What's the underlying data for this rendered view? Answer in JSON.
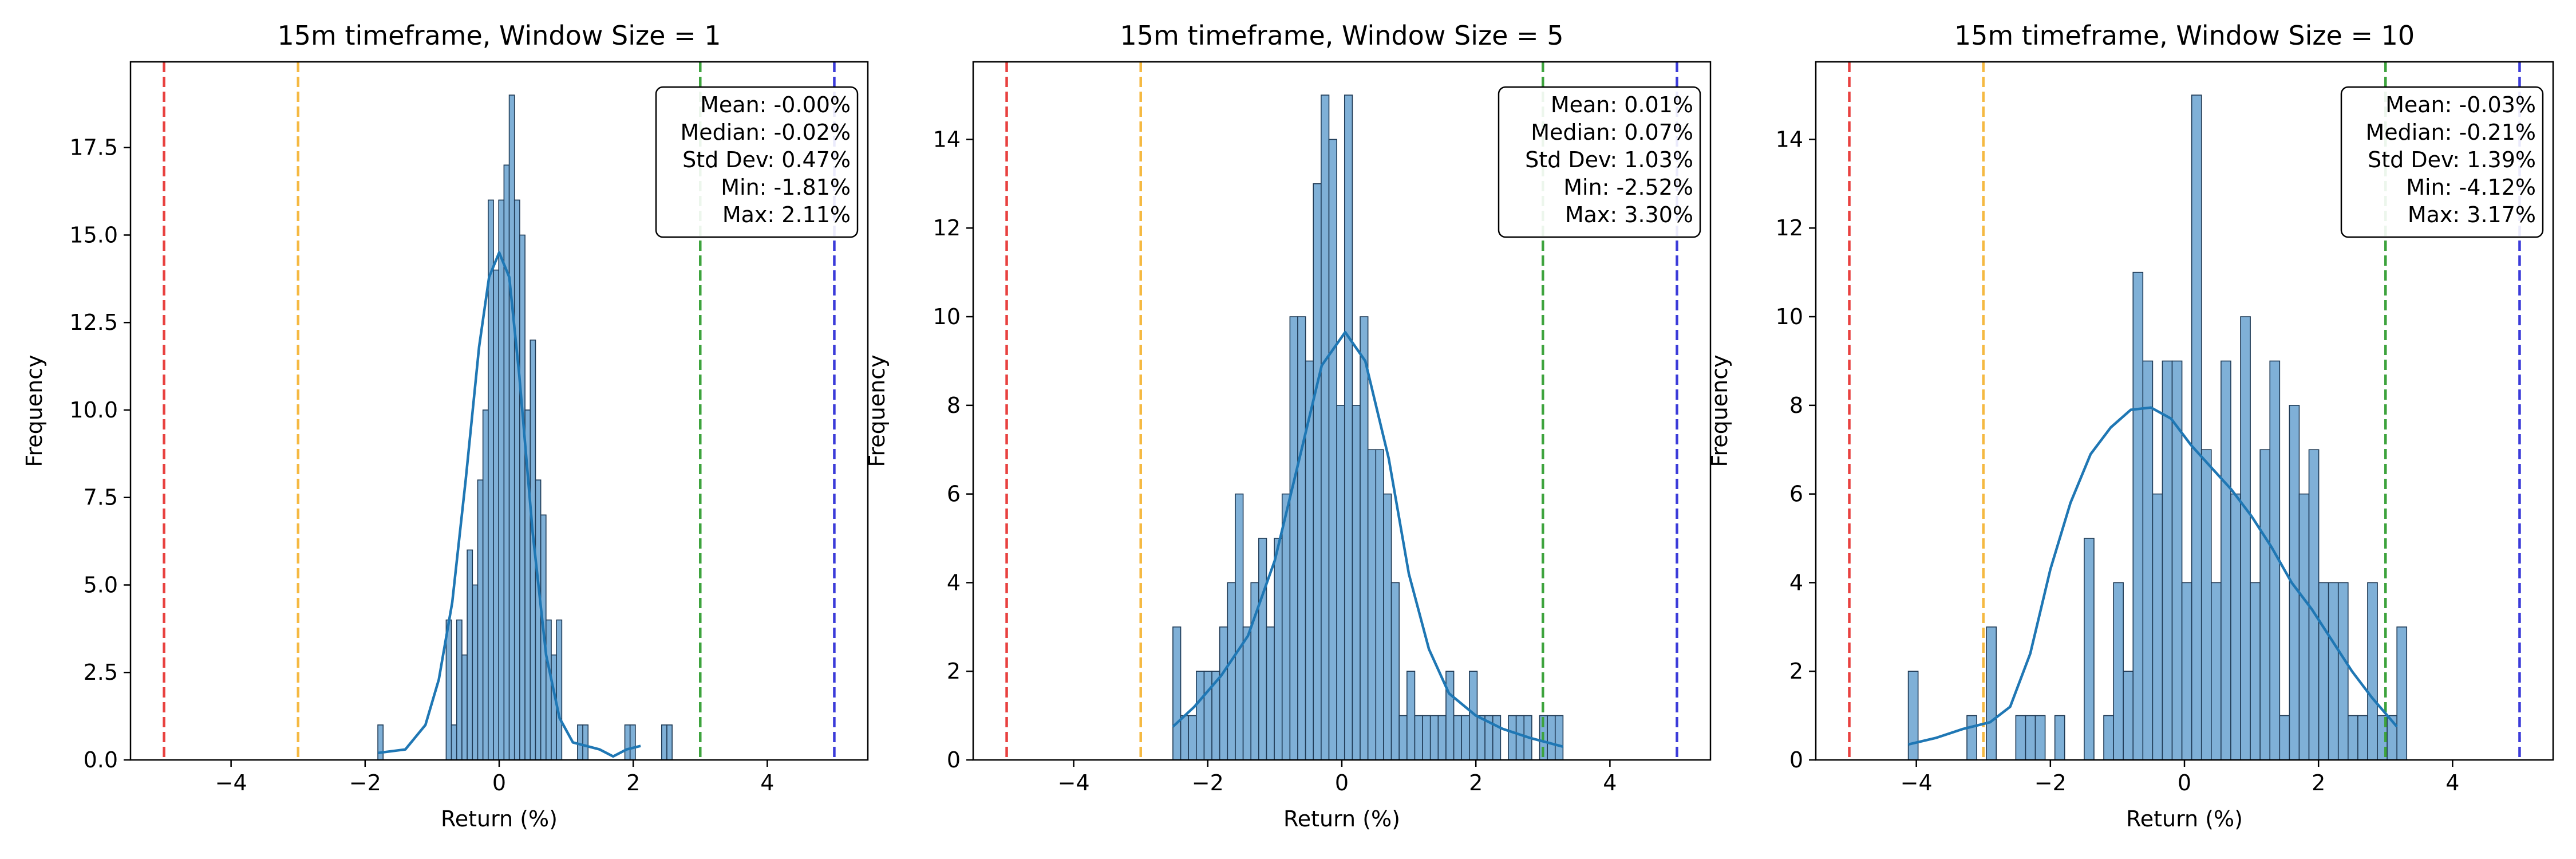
{
  "chart_data": [
    {
      "type": "histogram",
      "title": "15m timeframe, Window Size = 1",
      "xlabel": "Return (%)",
      "ylabel": "Frequency",
      "xlim": [
        -5.5,
        5.5
      ],
      "ylim": [
        0,
        19.95
      ],
      "xticks": [
        -4,
        -2,
        0,
        2,
        4
      ],
      "yticks": [
        0.0,
        2.5,
        5.0,
        7.5,
        10.0,
        12.5,
        15.0,
        17.5
      ],
      "bin_start": -1.81,
      "bin_width": 0.0784,
      "counts": [
        1,
        0,
        0,
        0,
        0,
        0,
        0,
        0,
        0,
        0,
        0,
        0,
        0,
        4,
        1,
        4,
        3,
        6,
        5,
        8,
        10,
        16,
        14,
        16,
        17,
        19,
        16,
        15,
        10,
        12,
        8,
        7,
        4,
        3,
        4,
        0,
        0,
        0,
        1,
        1,
        0,
        0,
        0,
        0,
        0,
        0,
        0,
        1,
        1,
        0,
        0,
        0,
        0,
        0,
        1,
        1
      ],
      "kde": [
        [
          -1.81,
          0.2
        ],
        [
          -1.4,
          0.3
        ],
        [
          -1.1,
          1.0
        ],
        [
          -0.9,
          2.3
        ],
        [
          -0.7,
          4.5
        ],
        [
          -0.5,
          8.0
        ],
        [
          -0.3,
          11.8
        ],
        [
          -0.15,
          13.8
        ],
        [
          0.0,
          14.5
        ],
        [
          0.15,
          13.8
        ],
        [
          0.3,
          11.0
        ],
        [
          0.5,
          6.5
        ],
        [
          0.7,
          3.0
        ],
        [
          0.9,
          1.2
        ],
        [
          1.1,
          0.5
        ],
        [
          1.3,
          0.4
        ],
        [
          1.5,
          0.3
        ],
        [
          1.7,
          0.1
        ],
        [
          1.9,
          0.3
        ],
        [
          2.11,
          0.4
        ]
      ],
      "ref_lines": [
        {
          "x": -5,
          "color": "#e8413f"
        },
        {
          "x": -3,
          "color": "#f5b942"
        },
        {
          "x": 3,
          "color": "#3da33d"
        },
        {
          "x": 5,
          "color": "#3b3bd9"
        }
      ],
      "stats": [
        "Mean: -0.00%",
        "Median: -0.02%",
        "Std Dev: 0.47%",
        "Min: -1.81%",
        "Max: 2.11%"
      ]
    },
    {
      "type": "histogram",
      "title": "15m timeframe, Window Size = 5",
      "xlabel": "Return (%)",
      "ylabel": "Frequency",
      "xlim": [
        -5.5,
        5.5
      ],
      "ylim": [
        0,
        15.75
      ],
      "xticks": [
        -4,
        -2,
        0,
        2,
        4
      ],
      "yticks": [
        0,
        2,
        4,
        6,
        8,
        10,
        12,
        14
      ],
      "bin_start": -2.52,
      "bin_width": 0.1164,
      "counts": [
        3,
        1,
        1,
        2,
        2,
        2,
        3,
        4,
        6,
        3,
        4,
        5,
        3,
        5,
        6,
        10,
        10,
        9,
        13,
        15,
        14,
        8,
        15,
        8,
        10,
        7,
        7,
        6,
        4,
        1,
        2,
        1,
        1,
        1,
        1,
        2,
        1,
        1,
        2,
        1,
        1,
        1,
        0,
        1,
        1,
        1,
        0,
        1,
        1,
        1
      ],
      "kde": [
        [
          -2.52,
          0.75
        ],
        [
          -2.2,
          1.2
        ],
        [
          -1.8,
          1.9
        ],
        [
          -1.4,
          2.8
        ],
        [
          -1.0,
          4.5
        ],
        [
          -0.6,
          7.0
        ],
        [
          -0.3,
          8.9
        ],
        [
          0.05,
          9.65
        ],
        [
          0.35,
          9.0
        ],
        [
          0.7,
          6.8
        ],
        [
          1.0,
          4.2
        ],
        [
          1.3,
          2.5
        ],
        [
          1.6,
          1.5
        ],
        [
          2.0,
          1.0
        ],
        [
          2.4,
          0.7
        ],
        [
          2.8,
          0.5
        ],
        [
          3.3,
          0.3
        ]
      ],
      "ref_lines": [
        {
          "x": -5,
          "color": "#e8413f"
        },
        {
          "x": -3,
          "color": "#f5b942"
        },
        {
          "x": 3,
          "color": "#3da33d"
        },
        {
          "x": 5,
          "color": "#3b3bd9"
        }
      ],
      "stats": [
        "Mean: 0.01%",
        "Median: 0.07%",
        "Std Dev: 1.03%",
        "Min: -2.52%",
        "Max: 3.30%"
      ]
    },
    {
      "type": "histogram",
      "title": "15m timeframe, Window Size = 10",
      "xlabel": "Return (%)",
      "ylabel": "Frequency",
      "xlim": [
        -5.5,
        5.5
      ],
      "ylim": [
        0,
        15.75
      ],
      "xticks": [
        -4,
        -2,
        0,
        2,
        4
      ],
      "yticks": [
        0,
        2,
        4,
        6,
        8,
        10,
        12,
        14
      ],
      "bin_start": -4.12,
      "bin_width": 0.1458,
      "counts": [
        2,
        0,
        0,
        0,
        0,
        0,
        1,
        0,
        3,
        0,
        0,
        1,
        1,
        1,
        0,
        1,
        0,
        0,
        5,
        0,
        1,
        4,
        2,
        11,
        9,
        6,
        9,
        9,
        4,
        15,
        7,
        4,
        9,
        6,
        10,
        4,
        7,
        9,
        1,
        8,
        6,
        7,
        4,
        4,
        4,
        1,
        1,
        4,
        1,
        1,
        3
      ],
      "kde": [
        [
          -4.12,
          0.35
        ],
        [
          -3.7,
          0.5
        ],
        [
          -3.3,
          0.7
        ],
        [
          -2.9,
          0.85
        ],
        [
          -2.6,
          1.2
        ],
        [
          -2.3,
          2.4
        ],
        [
          -2.0,
          4.3
        ],
        [
          -1.7,
          5.8
        ],
        [
          -1.4,
          6.9
        ],
        [
          -1.1,
          7.5
        ],
        [
          -0.8,
          7.9
        ],
        [
          -0.5,
          7.95
        ],
        [
          -0.2,
          7.7
        ],
        [
          0.1,
          7.1
        ],
        [
          0.4,
          6.6
        ],
        [
          0.7,
          6.1
        ],
        [
          1.0,
          5.5
        ],
        [
          1.3,
          4.8
        ],
        [
          1.6,
          4.0
        ],
        [
          1.9,
          3.4
        ],
        [
          2.2,
          2.7
        ],
        [
          2.5,
          2.0
        ],
        [
          2.8,
          1.4
        ],
        [
          3.17,
          0.75
        ]
      ],
      "ref_lines": [
        {
          "x": -5,
          "color": "#e8413f"
        },
        {
          "x": -3,
          "color": "#f5b942"
        },
        {
          "x": 3,
          "color": "#3da33d"
        },
        {
          "x": 5,
          "color": "#3b3bd9"
        }
      ],
      "stats": [
        "Mean: -0.03%",
        "Median: -0.21%",
        "Std Dev: 1.39%",
        "Min: -4.12%",
        "Max: 3.17%"
      ]
    }
  ]
}
